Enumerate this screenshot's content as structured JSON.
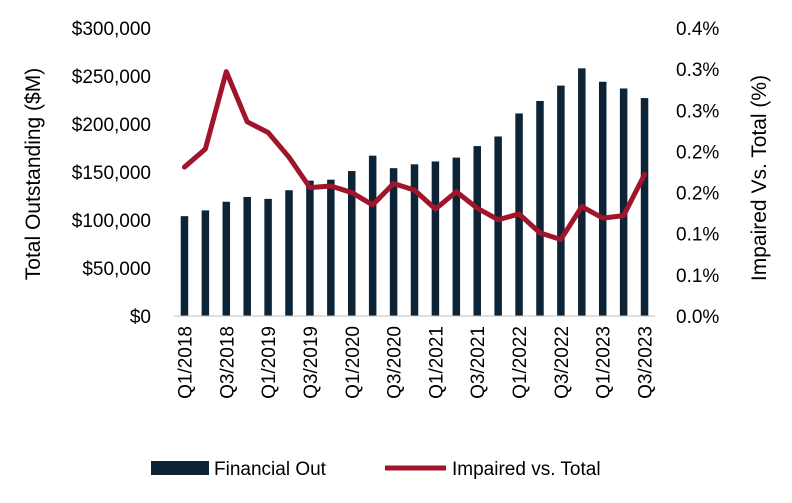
{
  "chart_data": {
    "type": "bar",
    "title": "",
    "categories": [
      "Q1/2018",
      "Q2/2018",
      "Q3/2018",
      "Q4/2018",
      "Q1/2019",
      "Q2/2019",
      "Q3/2019",
      "Q4/2019",
      "Q1/2020",
      "Q2/2020",
      "Q3/2020",
      "Q4/2020",
      "Q1/2021",
      "Q2/2021",
      "Q3/2021",
      "Q4/2021",
      "Q1/2022",
      "Q2/2022",
      "Q3/2022",
      "Q4/2022",
      "Q1/2023",
      "Q2/2023",
      "Q3/2023"
    ],
    "x_tick_labels": [
      "Q1/2018",
      "Q3/2018",
      "Q1/2019",
      "Q3/2019",
      "Q1/2020",
      "Q3/2020",
      "Q1/2021",
      "Q3/2021",
      "Q1/2022",
      "Q3/2022",
      "Q1/2023",
      "Q3/2023"
    ],
    "series": [
      {
        "name": "Financial Out",
        "axis": "left",
        "type": "bar",
        "color": "#0d2436",
        "values": [
          104000,
          110000,
          119000,
          124000,
          122000,
          131000,
          141000,
          142000,
          151000,
          167000,
          154000,
          158000,
          161000,
          165000,
          177000,
          187000,
          211000,
          224000,
          240000,
          258000,
          244000,
          237000,
          227000
        ]
      },
      {
        "name": "Impaired vs. Total",
        "axis": "right",
        "type": "line",
        "color": "#a0152a",
        "values": [
          0.181,
          0.203,
          0.297,
          0.236,
          0.223,
          0.193,
          0.156,
          0.158,
          0.15,
          0.135,
          0.161,
          0.153,
          0.13,
          0.151,
          0.131,
          0.117,
          0.124,
          0.101,
          0.093,
          0.133,
          0.119,
          0.122,
          0.172
        ]
      }
    ],
    "y_left": {
      "label": "Total Outstanding ($M)",
      "min": 0,
      "max": 300000,
      "ticks": [
        "$0",
        "$50,000",
        "$100,000",
        "$150,000",
        "$200,000",
        "$250,000",
        "$300,000"
      ]
    },
    "y_right": {
      "label": "Impaired Vs. Total (%)",
      "min": 0,
      "max": 0.35,
      "ticks": [
        "0.0%",
        "0.1%",
        "0.1%",
        "0.2%",
        "0.2%",
        "0.3%",
        "0.3%",
        "0.4%"
      ]
    },
    "legend": {
      "position": "bottom",
      "entries": [
        "Financial Out",
        "Impaired vs. Total"
      ]
    },
    "grid": false
  }
}
